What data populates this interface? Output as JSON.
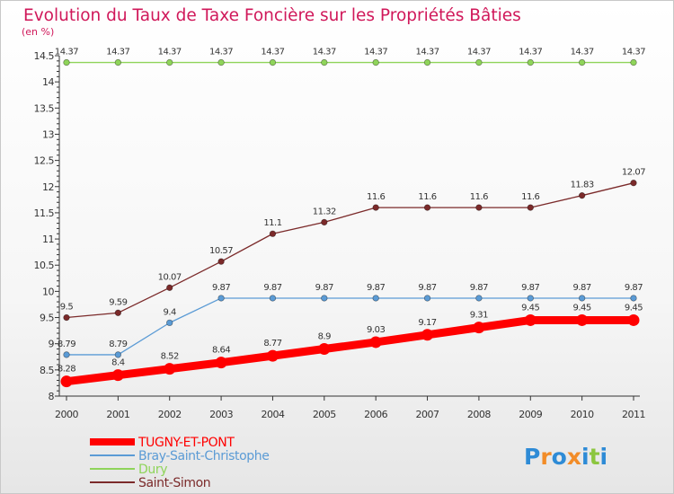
{
  "chart_data": {
    "type": "line",
    "title": "Evolution du Taux de Taxe Foncière sur les Propriétés Bâties",
    "subtitle": "(en %)",
    "x": [
      "2000",
      "2001",
      "2002",
      "2003",
      "2004",
      "2005",
      "2006",
      "2007",
      "2008",
      "2009",
      "2010",
      "2011"
    ],
    "ylim": [
      8,
      14.5
    ],
    "yticks": [
      "8",
      "8.5",
      "9",
      "9.5",
      "10",
      "10.5",
      "11",
      "11.5",
      "12",
      "12.5",
      "13",
      "13.5",
      "14",
      "14.5"
    ],
    "grid": false,
    "legend_position": "bottom-left",
    "series": [
      {
        "name": "TUGNY-ET-PONT",
        "color": "#ff0000",
        "values": [
          8.28,
          8.4,
          8.52,
          8.64,
          8.77,
          8.9,
          9.03,
          9.17,
          9.31,
          9.45,
          9.45,
          9.45
        ],
        "labels": [
          "8.28",
          "8.4",
          "8.52",
          "8.64",
          "8.77",
          "8.9",
          "9.03",
          "9.17",
          "9.31",
          "9.45",
          "9.45",
          "9.45"
        ]
      },
      {
        "name": "Bray-Saint-Christophe",
        "color": "#5b9bd5",
        "values": [
          8.79,
          8.79,
          9.4,
          9.87,
          9.87,
          9.87,
          9.87,
          9.87,
          9.87,
          9.87,
          9.87,
          9.87
        ],
        "labels": [
          "8.79",
          "8.79",
          "9.4",
          "9.87",
          "9.87",
          "9.87",
          "9.87",
          "9.87",
          "9.87",
          "9.87",
          "9.87",
          "9.87"
        ]
      },
      {
        "name": "Dury",
        "color": "#8fd45a",
        "values": [
          14.37,
          14.37,
          14.37,
          14.37,
          14.37,
          14.37,
          14.37,
          14.37,
          14.37,
          14.37,
          14.37,
          14.37
        ],
        "labels": [
          "14.37",
          "14.37",
          "14.37",
          "14.37",
          "14.37",
          "14.37",
          "14.37",
          "14.37",
          "14.37",
          "14.37",
          "14.37",
          "14.37"
        ]
      },
      {
        "name": "Saint-Simon",
        "color": "#7b2a2a",
        "values": [
          9.5,
          9.59,
          10.07,
          10.57,
          11.1,
          11.32,
          11.6,
          11.6,
          11.6,
          11.6,
          11.83,
          12.07
        ],
        "labels": [
          "9.5",
          "9.59",
          "10.07",
          "10.57",
          "11.1",
          "11.32",
          "11.6",
          "11.6",
          "11.6",
          "11.6",
          "11.83",
          "12.07"
        ]
      }
    ]
  },
  "logo": {
    "text": "Proxiti",
    "letters": [
      "P",
      "r",
      "o",
      "x",
      "i",
      "t",
      "i"
    ],
    "colors": [
      "#2e8bd6",
      "#f28c28",
      "#2e8bd6",
      "#f28c28",
      "#2e8bd6",
      "#8cc63f",
      "#2e8bd6"
    ]
  }
}
